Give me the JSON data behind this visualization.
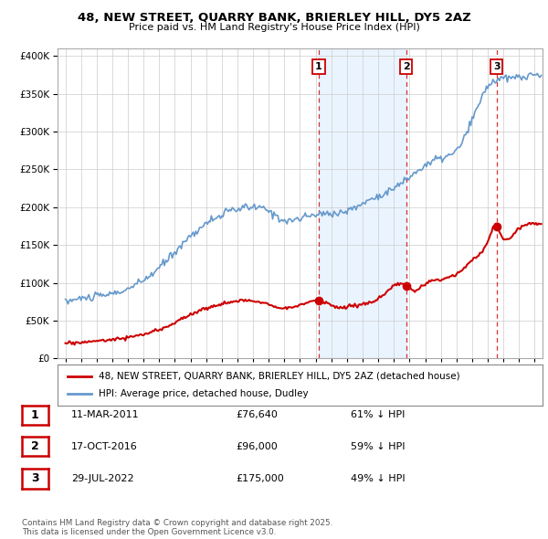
{
  "title1": "48, NEW STREET, QUARRY BANK, BRIERLEY HILL, DY5 2AZ",
  "title2": "Price paid vs. HM Land Registry's House Price Index (HPI)",
  "legend_entry1": "48, NEW STREET, QUARRY BANK, BRIERLEY HILL, DY5 2AZ (detached house)",
  "legend_entry2": "HPI: Average price, detached house, Dudley",
  "red_color": "#cc0000",
  "blue_color": "#6699cc",
  "blue_fill_color": "#ddeeff",
  "purchase1_date": 2011.19,
  "purchase1_price": 76640,
  "purchase2_date": 2016.79,
  "purchase2_price": 96000,
  "purchase3_date": 2022.57,
  "purchase3_price": 175000,
  "table": [
    {
      "num": "1",
      "date": "11-MAR-2011",
      "price": "£76,640",
      "pct": "61% ↓ HPI"
    },
    {
      "num": "2",
      "date": "17-OCT-2016",
      "price": "£96,000",
      "pct": "59% ↓ HPI"
    },
    {
      "num": "3",
      "date": "29-JUL-2022",
      "price": "£175,000",
      "pct": "49% ↓ HPI"
    }
  ],
  "footnote": "Contains HM Land Registry data © Crown copyright and database right 2025.\nThis data is licensed under the Open Government Licence v3.0.",
  "ylim_max": 400000,
  "xlim_start": 1994.5,
  "xlim_end": 2025.5
}
